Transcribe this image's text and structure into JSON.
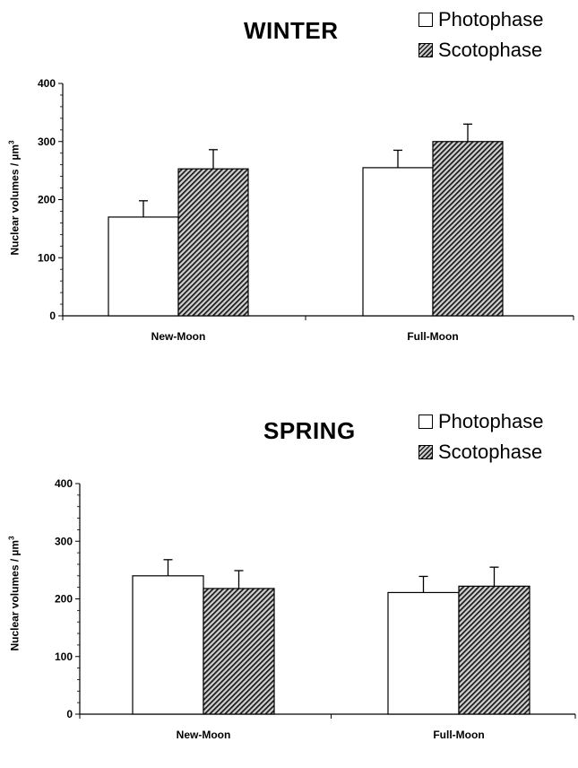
{
  "colors": {
    "photophase": "#ffffff",
    "scotophase": "hatched-dark",
    "axis": "#000000"
  },
  "chart_data": [
    {
      "type": "bar",
      "title": "WINTER",
      "ylabel": "Nuclear volumes / µm",
      "ylabel_superscript": "3",
      "ylim": [
        0,
        400
      ],
      "yticks": [
        "0",
        "100",
        "200",
        "300",
        "400"
      ],
      "categories": [
        "New-Moon",
        "Full-Moon"
      ],
      "legend_position": "top-right",
      "grid": false,
      "series": [
        {
          "name": "Photophase",
          "values": [
            170,
            255
          ],
          "errors": [
            28,
            30
          ]
        },
        {
          "name": "Scotophase",
          "values": [
            253,
            300
          ],
          "errors": [
            33,
            30
          ]
        }
      ]
    },
    {
      "type": "bar",
      "title": "SPRING",
      "ylabel": "Nuclear volumes / µm",
      "ylabel_superscript": "3",
      "ylim": [
        0,
        400
      ],
      "yticks": [
        "0",
        "100",
        "200",
        "300",
        "400"
      ],
      "categories": [
        "New-Moon",
        "Full-Moon"
      ],
      "legend_position": "top-right",
      "grid": false,
      "series": [
        {
          "name": "Photophase",
          "values": [
            240,
            211
          ],
          "errors": [
            28,
            28
          ]
        },
        {
          "name": "Scotophase",
          "values": [
            218,
            222
          ],
          "errors": [
            31,
            33
          ]
        }
      ]
    }
  ]
}
